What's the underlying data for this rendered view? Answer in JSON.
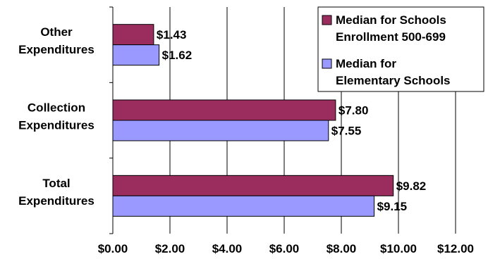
{
  "chart_data": {
    "type": "bar",
    "orientation": "horizontal",
    "categories": [
      "Other Expenditures",
      "Collection Expenditures",
      "Total Expenditures"
    ],
    "category_lines": [
      [
        "Other",
        "Expenditures"
      ],
      [
        "Collection",
        "Expenditures"
      ],
      [
        "Total",
        "Expenditures"
      ]
    ],
    "series": [
      {
        "name": "Median for Schools Enrollment 500-699",
        "name_lines": [
          "Median for Schools",
          "Enrollment 500-699"
        ],
        "color": "#9b2d5e",
        "values": [
          1.43,
          7.8,
          9.82
        ],
        "labels": [
          "$1.43",
          "$7.80",
          "$9.82"
        ]
      },
      {
        "name": "Median for Elementary Schools",
        "name_lines": [
          "Median for",
          "Elementary Schools"
        ],
        "color": "#9999ff",
        "values": [
          1.62,
          7.55,
          9.15
        ],
        "labels": [
          "$1.62",
          "$7.55",
          "$9.15"
        ]
      }
    ],
    "xlim": [
      0,
      12
    ],
    "xticks": [
      0,
      2,
      4,
      6,
      8,
      10,
      12
    ],
    "xtick_labels": [
      "$0.00",
      "$2.00",
      "$4.00",
      "$6.00",
      "$8.00",
      "$10.00",
      "$12.00"
    ],
    "title": "",
    "xlabel": "",
    "ylabel": "",
    "grid": "vertical",
    "legend_position": "top-right"
  }
}
